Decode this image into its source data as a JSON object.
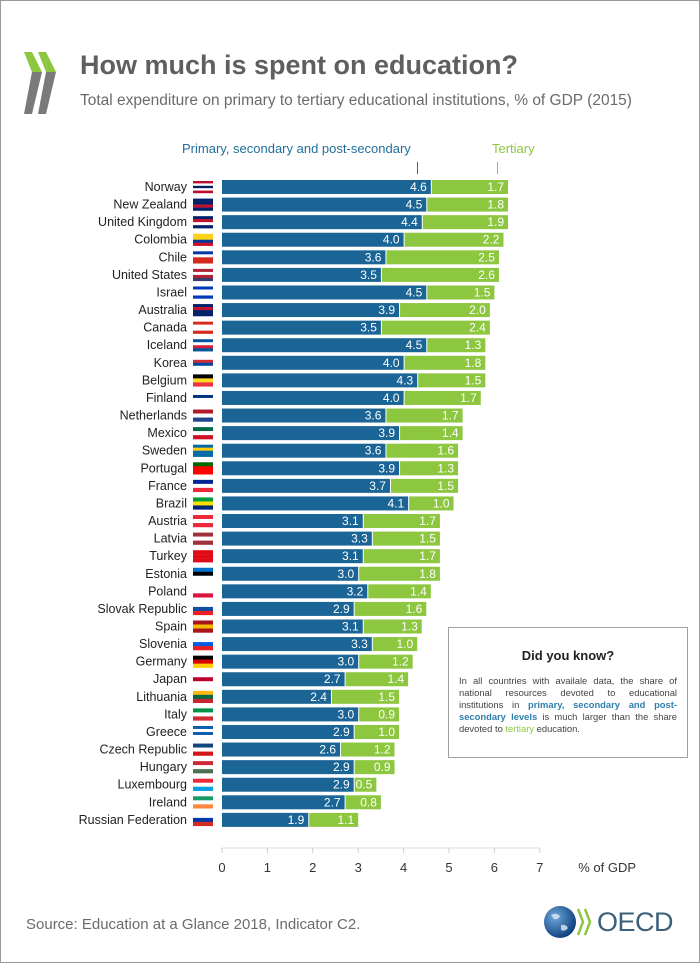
{
  "header": {
    "title": "How much is spent on education?",
    "subtitle": "Total expenditure on primary to tertiary educational institutions, % of GDP (2015)"
  },
  "colors": {
    "primary": "#1a6496",
    "tertiary": "#8dc63f",
    "logo_green": "#8dc63f",
    "logo_grey": "#7a7a7a"
  },
  "chart_data": {
    "type": "bar",
    "orientation": "horizontal",
    "stacked": true,
    "title": "How much is spent on education?",
    "subtitle": "Total expenditure on primary to tertiary educational institutions, % of GDP (2015)",
    "xlabel": "% of GDP",
    "xlim": [
      0,
      7
    ],
    "xticks": [
      "0",
      "1",
      "2",
      "3",
      "4",
      "5",
      "6",
      "7"
    ],
    "legend": "top",
    "categories": [
      "Norway",
      "New Zealand",
      "United Kingdom",
      "Colombia",
      "Chile",
      "United States",
      "Israel",
      "Australia",
      "Canada",
      "Iceland",
      "Korea",
      "Belgium",
      "Finland",
      "Netherlands",
      "Mexico",
      "Sweden",
      "Portugal",
      "France",
      "Brazil",
      "Austria",
      "Latvia",
      "Turkey",
      "Estonia",
      "Poland",
      "Slovak Republic",
      "Spain",
      "Slovenia",
      "Germany",
      "Japan",
      "Lithuania",
      "Italy",
      "Greece",
      "Czech Republic",
      "Hungary",
      "Luxembourg",
      "Ireland",
      "Russian Federation"
    ],
    "series": [
      {
        "name": "Primary, secondary and post-secondary",
        "color": "#1a6496",
        "values": [
          4.6,
          4.5,
          4.4,
          4.0,
          3.6,
          3.5,
          4.5,
          3.9,
          3.5,
          4.5,
          4.0,
          4.3,
          4.0,
          3.6,
          3.9,
          3.6,
          3.9,
          3.7,
          4.1,
          3.1,
          3.3,
          3.1,
          3.0,
          3.2,
          2.9,
          3.1,
          3.3,
          3.0,
          2.7,
          2.4,
          3.0,
          2.9,
          2.6,
          2.9,
          2.9,
          2.7,
          1.9
        ]
      },
      {
        "name": "Tertiary",
        "color": "#8dc63f",
        "values": [
          1.7,
          1.8,
          1.9,
          2.2,
          2.5,
          2.6,
          1.5,
          2.0,
          2.4,
          1.3,
          1.8,
          1.5,
          1.7,
          1.7,
          1.4,
          1.6,
          1.3,
          1.5,
          1.0,
          1.7,
          1.5,
          1.7,
          1.8,
          1.4,
          1.6,
          1.3,
          1.0,
          1.2,
          1.4,
          1.5,
          0.9,
          1.0,
          1.2,
          0.9,
          0.5,
          0.8,
          1.1
        ]
      }
    ]
  },
  "flags": [
    [
      "#ba0c2f",
      "#fff",
      "#00205b",
      "#fff",
      "#ba0c2f"
    ],
    [
      "#012169",
      "#012169",
      "#c8102e",
      "#012169"
    ],
    [
      "#012169",
      "#c8102e",
      "#fff",
      "#012169"
    ],
    [
      "#fcd116",
      "#fcd116",
      "#003893",
      "#ce1126"
    ],
    [
      "#0039a6",
      "#fff",
      "#d52b1e",
      "#d52b1e"
    ],
    [
      "#b22234",
      "#fff",
      "#b22234",
      "#3c3b6e"
    ],
    [
      "#0038b8",
      "#fff",
      "#fff",
      "#0038b8"
    ],
    [
      "#012169",
      "#c8102e",
      "#012169",
      "#012169"
    ],
    [
      "#d52b1e",
      "#fff",
      "#fff",
      "#d52b1e"
    ],
    [
      "#02529c",
      "#fff",
      "#dc1e35",
      "#02529c"
    ],
    [
      "#fff",
      "#cd2e3a",
      "#0047a0",
      "#fff"
    ],
    [
      "#000",
      "#fdda24",
      "#ef3340"
    ],
    [
      "#fff",
      "#003580",
      "#fff",
      "#fff"
    ],
    [
      "#ae1c28",
      "#fff",
      "#21468b"
    ],
    [
      "#006847",
      "#fff",
      "#ce1126"
    ],
    [
      "#006aa7",
      "#fecc00",
      "#006aa7",
      "#006aa7"
    ],
    [
      "#006600",
      "#ff0000",
      "#ff0000"
    ],
    [
      "#002395",
      "#fff",
      "#ed2939"
    ],
    [
      "#009c3b",
      "#ffdf00",
      "#002776"
    ],
    [
      "#ed2939",
      "#fff",
      "#ed2939"
    ],
    [
      "#9e3039",
      "#fff",
      "#9e3039"
    ],
    [
      "#e30a17",
      "#e30a17",
      "#e30a17"
    ],
    [
      "#0072ce",
      "#000",
      "#fff"
    ],
    [
      "#fff",
      "#fff",
      "#dc143c"
    ],
    [
      "#fff",
      "#0b4ea2",
      "#ee1c25"
    ],
    [
      "#aa151b",
      "#f1bf00",
      "#aa151b"
    ],
    [
      "#fff",
      "#005ce5",
      "#ed1c24"
    ],
    [
      "#000",
      "#dd0000",
      "#ffce00"
    ],
    [
      "#fff",
      "#bc002d",
      "#fff"
    ],
    [
      "#fdb913",
      "#006a44",
      "#c1272d"
    ],
    [
      "#009246",
      "#fff",
      "#ce2b37"
    ],
    [
      "#0d5eaf",
      "#fff",
      "#0d5eaf",
      "#fff"
    ],
    [
      "#11457e",
      "#fff",
      "#d7141a"
    ],
    [
      "#ce2939",
      "#fff",
      "#477050"
    ],
    [
      "#ed2939",
      "#fff",
      "#00a1de"
    ],
    [
      "#169b62",
      "#fff",
      "#ff883e"
    ],
    [
      "#fff",
      "#0039a6",
      "#d52b1e"
    ]
  ],
  "info_box": {
    "title": "Did you know?",
    "text_1": "In all countries with availale data, the share of national resources devoted to educational institutions in ",
    "highlight_1": "primary, secondary and post-secondary levels",
    "text_2": " is much larger than the share devoted to ",
    "highlight_2": "tertiary",
    "text_3": " education."
  },
  "footer": {
    "source": "Source: Education at a Glance 2018, Indicator C2.",
    "logo_text": "OECD"
  }
}
